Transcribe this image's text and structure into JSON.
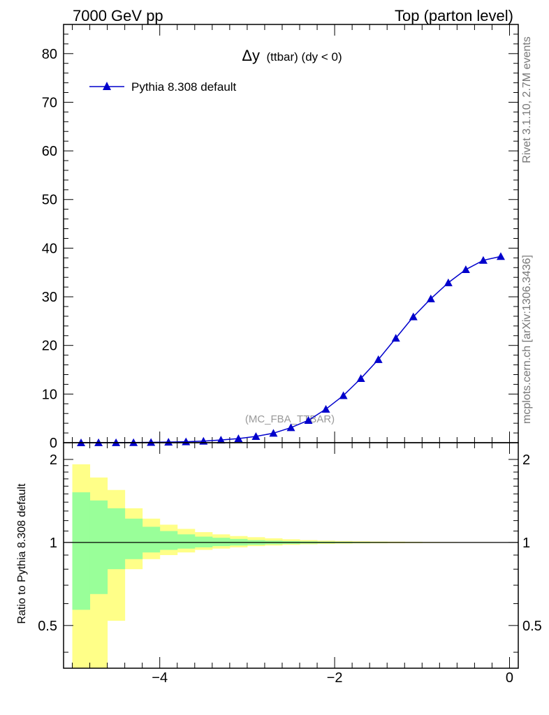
{
  "header": {
    "left": "7000 GeV pp",
    "right": "Top (parton level)"
  },
  "side_labels": {
    "rivet": "Rivet 3.1.10,  2.7M events",
    "mcplots": "mcplots.cern.ch [arXiv:1306.3436]"
  },
  "chart_data": [
    {
      "type": "line",
      "title": "Δy (ttbar) (dy < 0)",
      "title_main": "Δy",
      "title_sub": "(ttbar) (dy < 0)",
      "watermark": "(MC_FBA_TTBAR)",
      "xlim": [
        -5.1,
        0.1
      ],
      "ylim": [
        0,
        86
      ],
      "xticks": [
        -4,
        -2,
        0
      ],
      "xtick_labels": [
        "−4",
        "−2",
        "0"
      ],
      "yticks": [
        0,
        10,
        20,
        30,
        40,
        50,
        60,
        70,
        80
      ],
      "ytick_labels": [
        "0",
        "10",
        "20",
        "30",
        "40",
        "50",
        "60",
        "70",
        "80"
      ],
      "legend_position": "top-left",
      "colors": {
        "series": "#0000cc"
      },
      "series": [
        {
          "name": "Pythia 8.308 default",
          "x": [
            -4.9,
            -4.7,
            -4.5,
            -4.3,
            -4.1,
            -3.9,
            -3.7,
            -3.5,
            -3.3,
            -3.1,
            -2.9,
            -2.7,
            -2.5,
            -2.3,
            -2.1,
            -1.9,
            -1.7,
            -1.5,
            -1.3,
            -1.1,
            -0.9,
            -0.7,
            -0.5,
            -0.3,
            -0.1
          ],
          "values": [
            0.0,
            0.01,
            0.02,
            0.04,
            0.07,
            0.12,
            0.2,
            0.33,
            0.55,
            0.85,
            1.3,
            1.95,
            3.1,
            4.6,
            6.9,
            9.7,
            13.2,
            17.1,
            21.5,
            25.9,
            29.6,
            32.9,
            35.6,
            37.5,
            38.3
          ]
        }
      ]
    },
    {
      "type": "area",
      "ylabel": "Ratio to Pythia 8.308 default",
      "xlim": [
        -5.1,
        0.1
      ],
      "ylim": [
        0.35,
        2.3
      ],
      "log_y": true,
      "yticks": [
        0.5,
        1,
        2
      ],
      "ytick_labels": [
        "0.5",
        "1",
        "2"
      ],
      "xticks": [
        -4,
        -2,
        0
      ],
      "xtick_labels": [
        "−4",
        "−2",
        "0"
      ],
      "colors": {
        "inner_band": "#99ff99",
        "outer_band": "#ffff88",
        "ratio_line": "#000000"
      },
      "bins": [
        -5.0,
        -4.8,
        -4.6,
        -4.4,
        -4.2,
        -4.0,
        -3.8,
        -3.6,
        -3.4,
        -3.2,
        -3.0,
        -2.8,
        -2.6,
        -2.4,
        -2.2,
        -2.0,
        -1.8,
        -1.6,
        -1.4,
        -1.2,
        -1.0,
        -0.8,
        -0.6,
        -0.4,
        -0.2,
        0.0
      ],
      "inner_upper": [
        1.52,
        1.42,
        1.33,
        1.22,
        1.14,
        1.1,
        1.07,
        1.05,
        1.04,
        1.03,
        1.02,
        1.015,
        1.012,
        1.009,
        1.007,
        1.006,
        1.005,
        1.004,
        1.003,
        1.003,
        1.002,
        1.002,
        1.002,
        1.001,
        1.001
      ],
      "inner_lower": [
        0.57,
        0.65,
        0.8,
        0.87,
        0.92,
        0.94,
        0.95,
        0.96,
        0.97,
        0.975,
        0.98,
        0.985,
        0.988,
        0.991,
        0.993,
        0.994,
        0.995,
        0.996,
        0.997,
        0.997,
        0.998,
        0.998,
        0.998,
        0.999,
        0.999
      ],
      "outer_upper": [
        1.92,
        1.72,
        1.55,
        1.33,
        1.22,
        1.16,
        1.12,
        1.09,
        1.07,
        1.055,
        1.045,
        1.035,
        1.027,
        1.02,
        1.015,
        1.012,
        1.01,
        1.008,
        1.007,
        1.006,
        1.005,
        1.004,
        1.003,
        1.003,
        1.002
      ],
      "outer_lower": [
        0.35,
        0.35,
        0.52,
        0.8,
        0.87,
        0.9,
        0.92,
        0.94,
        0.95,
        0.96,
        0.97,
        0.975,
        0.98,
        0.985,
        0.988,
        0.99,
        0.992,
        0.993,
        0.994,
        0.995,
        0.996,
        0.997,
        0.997,
        0.998,
        0.998
      ]
    }
  ]
}
